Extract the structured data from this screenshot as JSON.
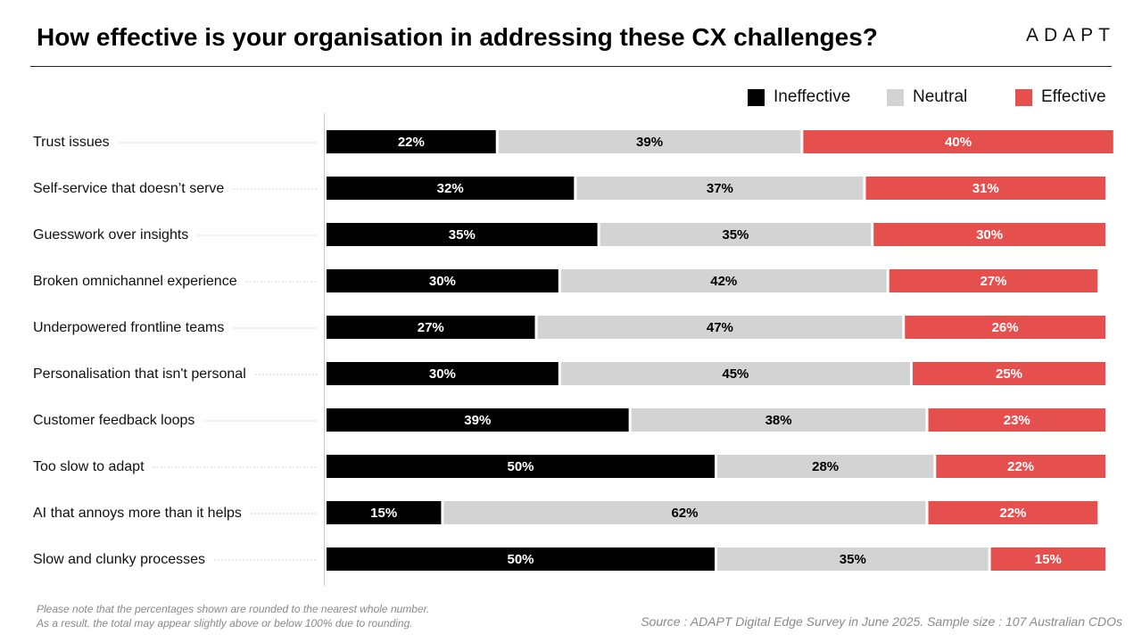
{
  "header": {
    "title": "How effective is your organisation in addressing these CX challenges?",
    "logo_text": "ADAPT"
  },
  "colors": {
    "ineffective": "#000000",
    "neutral": "#d3d3d3",
    "effective": "#e5504f"
  },
  "chart_data": {
    "type": "bar",
    "orientation": "horizontal",
    "stacked": true,
    "title": "How effective is your organisation in addressing these CX challenges?",
    "legend_position": "top-right",
    "grid": false,
    "xlim": [
      0,
      100
    ],
    "categories": [
      "Trust issues",
      "Self-service that doesn’t serve",
      "Guesswork over insights",
      "Broken omnichannel experience",
      "Underpowered frontline teams",
      "Personalisation that isn't personal",
      "Customer feedback loops",
      "Too slow to adapt",
      "AI that annoys more than it helps",
      "Slow and clunky processes"
    ],
    "series": [
      {
        "name": "Ineffective",
        "color": "#000000",
        "label_color": "#ffffff",
        "values": [
          22,
          32,
          35,
          30,
          27,
          30,
          39,
          50,
          15,
          50
        ]
      },
      {
        "name": "Neutral",
        "color": "#d3d3d3",
        "label_color": "#000000",
        "values": [
          39,
          37,
          35,
          42,
          47,
          45,
          38,
          28,
          62,
          35
        ]
      },
      {
        "name": "Effective",
        "color": "#e5504f",
        "label_color": "#ffffff",
        "values": [
          40,
          31,
          30,
          27,
          26,
          25,
          23,
          22,
          22,
          15
        ]
      }
    ],
    "value_suffix": "%"
  },
  "footnote": {
    "line1": "Please note that the percentages shown are rounded to the nearest whole number.",
    "line2": "As a result, the total may appear slightly above or below 100% due to rounding."
  },
  "source": "Source : ADAPT Digital Edge Survey in June 2025. Sample size : 107 Australian CDOs"
}
